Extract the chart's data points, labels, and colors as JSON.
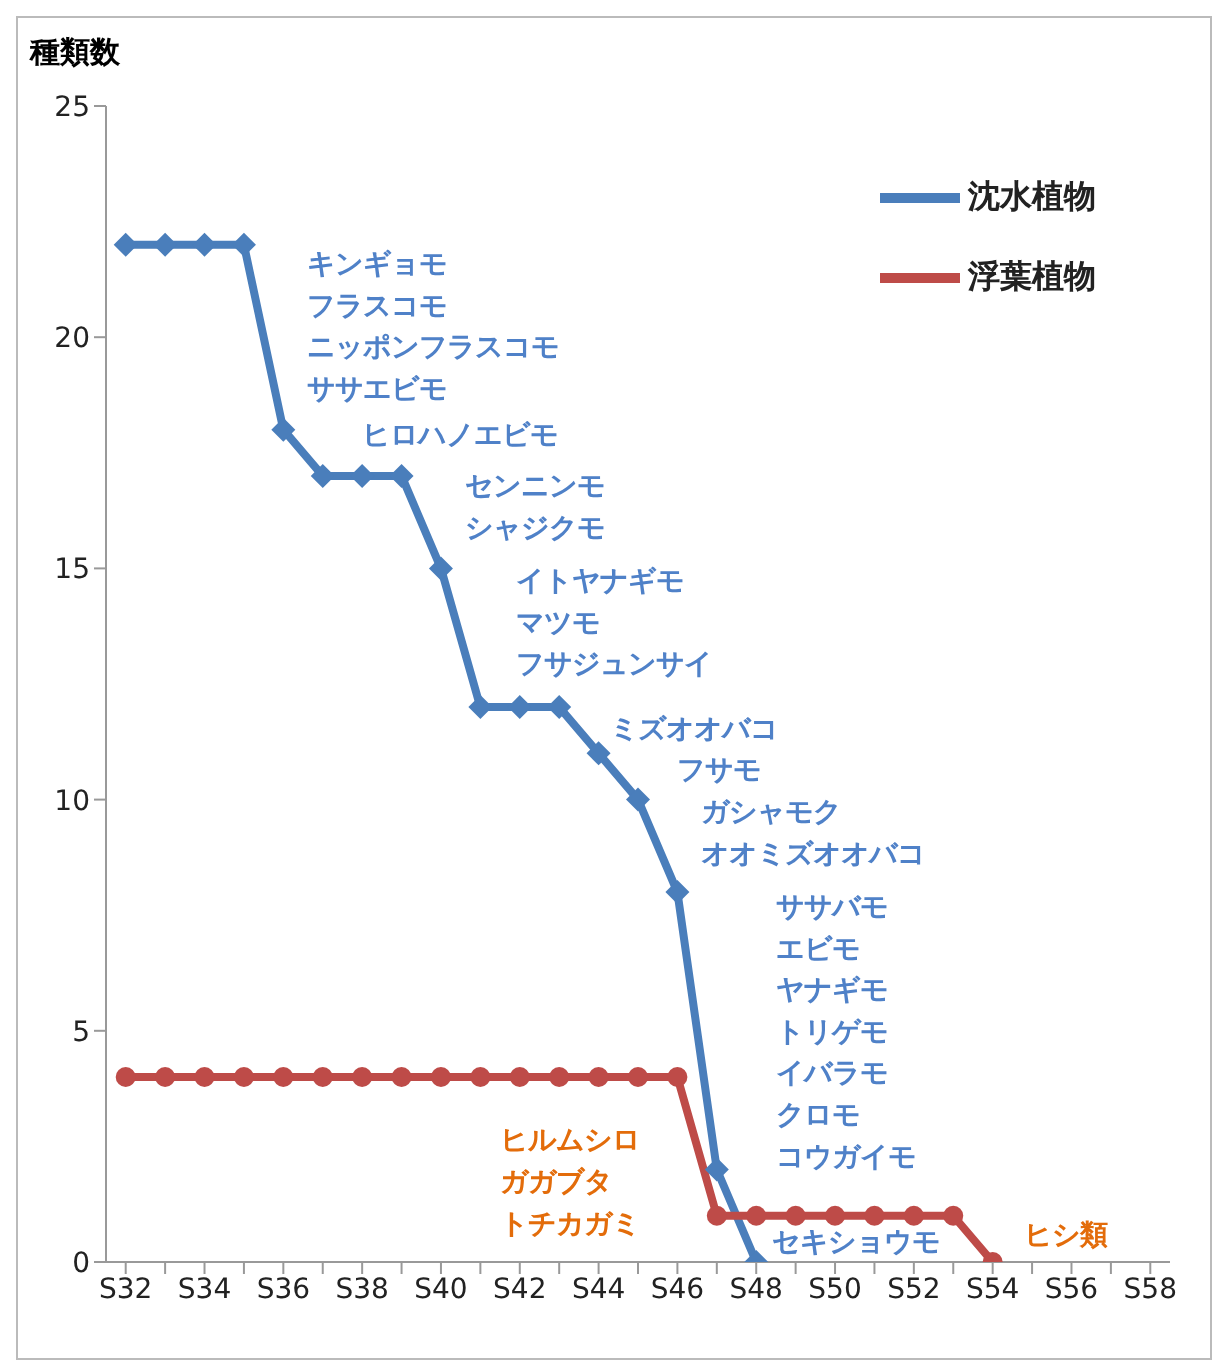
{
  "chart_data": {
    "type": "line",
    "ylabel": "種類数",
    "categories": [
      "S32",
      null,
      "S34",
      null,
      "S36",
      null,
      "S38",
      null,
      "S40",
      null,
      "S42",
      null,
      "S44",
      null,
      "S46",
      null,
      "S48",
      null,
      "S50",
      null,
      "S52",
      null,
      "S54",
      null,
      "S56",
      null,
      "S58"
    ],
    "series": [
      {
        "name": "沈水植物",
        "color": "#4a7ebb",
        "marker": "diamond",
        "values": [
          22,
          22,
          22,
          22,
          18,
          17,
          17,
          17,
          15,
          12,
          12,
          12,
          11,
          10,
          8,
          2,
          0,
          null,
          null,
          null,
          null,
          null,
          null,
          null,
          null,
          null,
          null
        ]
      },
      {
        "name": "浮葉植物",
        "color": "#be4b48",
        "marker": "circle",
        "values": [
          4,
          4,
          4,
          4,
          4,
          4,
          4,
          4,
          4,
          4,
          4,
          4,
          4,
          4,
          4,
          1,
          1,
          1,
          1,
          1,
          1,
          1,
          0,
          null,
          null,
          null,
          null
        ]
      }
    ],
    "ylim": [
      0,
      25
    ],
    "yticks": [
      0,
      5,
      10,
      15,
      20,
      25
    ],
    "grid": false,
    "legend": "top right",
    "annotations": [
      "キンギョモ",
      "フラスコモ",
      "ニッポンフラスコモ",
      "ササエビモ",
      "ヒロハノエビモ",
      "センニンモ",
      "シャジクモ",
      "イトヤナギモ",
      "マツモ",
      "フサジュンサイ",
      "ミズオオバコ",
      "フサモ",
      "ガシャモク",
      "オオミズオオバコ",
      "ササバモ",
      "エビモ",
      "ヤナギモ",
      "トリゲモ",
      "イバラモ",
      "クロモ",
      "コウガイモ",
      "セキショウモ",
      "ヒルムシロ",
      "ガガブタ",
      "トチカガミ",
      "ヒシ類"
    ]
  }
}
